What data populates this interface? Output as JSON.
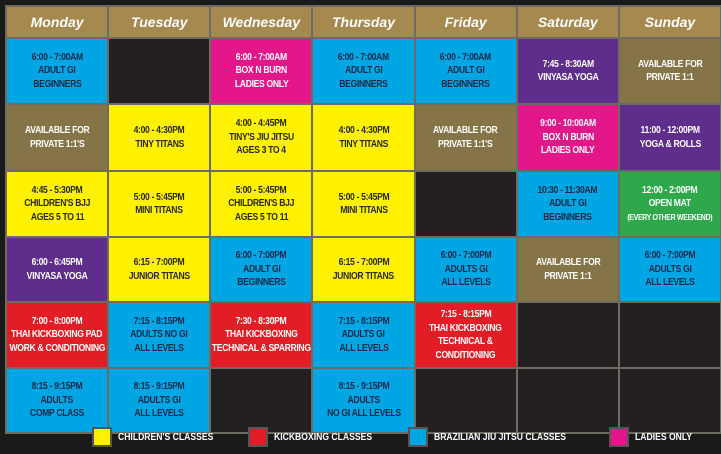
{
  "colors": {
    "blue": "#00a6e4",
    "yellow": "#fff100",
    "magenta": "#e3168a",
    "purple": "#5f2d8c",
    "olive": "#857447",
    "red": "#e21d25",
    "green": "#2ea84a",
    "header": "#a6894f",
    "empty": "#242021"
  },
  "days": [
    "Monday",
    "Tuesday",
    "Wednesday",
    "Thursday",
    "Friday",
    "Saturday",
    "Sunday"
  ],
  "rows": [
    [
      {
        "color": "blue",
        "lines": [
          "6:00 - 7:00AM",
          "Adult GI",
          "Beginners"
        ]
      },
      {
        "color": "empty",
        "lines": []
      },
      {
        "color": "magenta",
        "lines": [
          "6:00 - 7:00AM",
          "Box N Burn",
          "Ladies Only"
        ]
      },
      {
        "color": "blue",
        "lines": [
          "6:00 - 7:00AM",
          "Adult GI",
          "Beginners"
        ]
      },
      {
        "color": "blue",
        "lines": [
          "6:00 - 7:00AM",
          "Adult GI",
          "Beginners"
        ]
      },
      {
        "color": "purple",
        "lines": [
          "7:45 - 8:30AM",
          "Vinyasa Yoga"
        ]
      },
      {
        "color": "olive",
        "lines": [
          "Available for",
          "Private 1:1"
        ]
      }
    ],
    [
      {
        "color": "olive",
        "lines": [
          "Available for",
          "Private 1:1's"
        ]
      },
      {
        "color": "yellow",
        "lines": [
          "4:00 - 4:30PM",
          "Tiny Titans"
        ]
      },
      {
        "color": "yellow",
        "lines": [
          "4:00 - 4:45PM",
          "Tiny's Jiu Jitsu",
          "Ages 3 to 4"
        ]
      },
      {
        "color": "yellow",
        "lines": [
          "4:00 - 4:30PM",
          "Tiny Titans"
        ]
      },
      {
        "color": "olive",
        "lines": [
          "Available for",
          "Private 1:1's"
        ]
      },
      {
        "color": "magenta",
        "lines": [
          "9:00 - 10:00AM",
          "Box N Burn",
          "Ladies Only"
        ]
      },
      {
        "color": "purple",
        "lines": [
          "11:00 - 12:00PM",
          "Yoga & Rolls"
        ]
      }
    ],
    [
      {
        "color": "yellow",
        "lines": [
          "4:45 - 5:30PM",
          "Children's BJJ",
          "Ages 5 to 11"
        ]
      },
      {
        "color": "yellow",
        "lines": [
          "5:00 - 5:45PM",
          "Mini Titans"
        ]
      },
      {
        "color": "yellow",
        "lines": [
          "5:00 - 5:45PM",
          "Children's BJJ",
          "Ages 5 to 11"
        ]
      },
      {
        "color": "yellow",
        "lines": [
          "5:00 - 5:45PM",
          "Mini Titans"
        ]
      },
      {
        "color": "empty",
        "lines": []
      },
      {
        "color": "blue",
        "lines": [
          "10:30 - 11:30AM",
          "Adult GI",
          "Beginners"
        ]
      },
      {
        "color": "green",
        "lines": [
          "12:00 - 2:00PM",
          "Open Mat",
          "(Every Other Weekend)"
        ]
      }
    ],
    [
      {
        "color": "purple",
        "lines": [
          "6:00 - 6:45PM",
          "Vinyasa Yoga"
        ]
      },
      {
        "color": "yellow",
        "lines": [
          "6:15 - 7:00PM",
          "Junior Titans"
        ]
      },
      {
        "color": "blue",
        "lines": [
          "6:00 - 7:00PM",
          "Adult GI",
          "Beginners"
        ]
      },
      {
        "color": "yellow",
        "lines": [
          "6:15 - 7:00PM",
          "Junior Titans"
        ]
      },
      {
        "color": "blue",
        "lines": [
          "6:00 - 7:00PM",
          "Adults GI",
          "All Levels"
        ]
      },
      {
        "color": "olive",
        "lines": [
          "Available for",
          "Private 1:1"
        ]
      },
      {
        "color": "blue",
        "lines": [
          "6:00 - 7:00PM",
          "Adults GI",
          "All Levels"
        ]
      }
    ],
    [
      {
        "color": "red",
        "lines": [
          "7:00 - 8:00PM",
          "Thai Kickboxing Pad",
          "Work & Conditioning"
        ]
      },
      {
        "color": "blue",
        "lines": [
          "7:15 - 8:15PM",
          "Adults No GI",
          "All Levels"
        ]
      },
      {
        "color": "red",
        "lines": [
          "7:30 - 8:30PM",
          "Thai Kickboxing",
          "Technical & Sparring"
        ]
      },
      {
        "color": "blue",
        "lines": [
          "7:15 - 8:15PM",
          "Adults GI",
          "All Levels"
        ]
      },
      {
        "color": "red",
        "lines": [
          "7:15 - 8:15PM",
          "Thai Kickboxing",
          "Technical &",
          "Conditioning"
        ]
      },
      {
        "color": "empty",
        "lines": []
      },
      {
        "color": "empty",
        "lines": []
      }
    ],
    [
      {
        "color": "blue",
        "lines": [
          "8:15 - 9:15PM",
          "Adults",
          "Comp Class"
        ]
      },
      {
        "color": "blue",
        "lines": [
          "8:15 - 9:15PM",
          "Adults GI",
          "All Levels"
        ]
      },
      {
        "color": "empty",
        "lines": []
      },
      {
        "color": "blue",
        "lines": [
          "8:15 - 9:15PM",
          "Adults",
          "No GI All Levels"
        ]
      },
      {
        "color": "empty",
        "lines": []
      },
      {
        "color": "empty",
        "lines": []
      },
      {
        "color": "empty",
        "lines": []
      }
    ]
  ],
  "legend": [
    {
      "label": "Children's Classes",
      "color": "#fff100"
    },
    {
      "label": "Kickboxing Classes",
      "color": "#e21d25"
    },
    {
      "label": "Brazilian Jiu Jitsu Classes",
      "color": "#00a6e4"
    },
    {
      "label": "Ladies Only",
      "color": "#e3168a"
    }
  ]
}
